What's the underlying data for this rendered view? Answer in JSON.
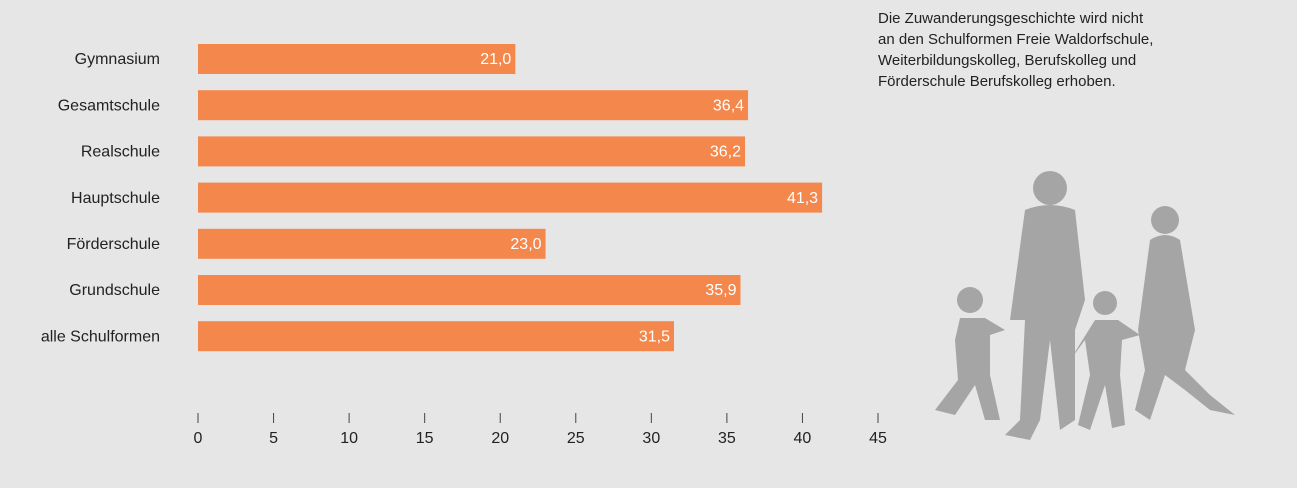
{
  "chart_data": {
    "type": "bar",
    "orientation": "horizontal",
    "categories": [
      "Gymnasium",
      "Gesamtschule",
      "Realschule",
      "Hauptschule",
      "Förderschule",
      "Grundschule",
      "alle Schulformen"
    ],
    "values": [
      21.0,
      36.4,
      36.2,
      41.3,
      23.0,
      35.9,
      31.5
    ],
    "value_labels": [
      "21,0",
      "36,4",
      "36,2",
      "41,3",
      "23,0",
      "35,9",
      "31,5"
    ],
    "color": "#f4874b",
    "xlim": [
      0,
      45
    ],
    "xticks": [
      0,
      5,
      10,
      15,
      20,
      25,
      30,
      35,
      40,
      45
    ],
    "annotation": [
      "Die Zuwanderungsgeschichte wird nicht",
      "an den Schulformen Freie Waldorfschule,",
      "Weiterbildungskolleg, Berufskolleg und",
      "Förderschule Berufskolleg erhoben."
    ]
  }
}
